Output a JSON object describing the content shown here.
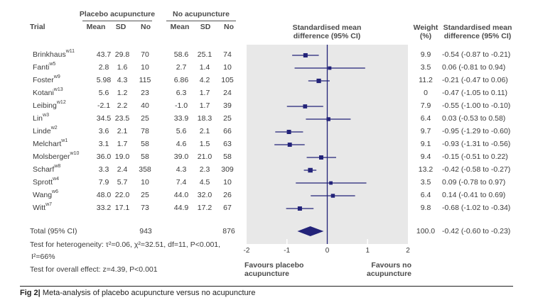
{
  "headers": {
    "trial": "Trial",
    "group1": "Placebo acupuncture",
    "group2": "No acupuncture",
    "mean": "Mean",
    "sd": "SD",
    "no": "No",
    "plot_title_line1": "Standardised mean",
    "plot_title_line2": "difference (95% CI)",
    "weight_line1": "Weight",
    "weight_line2": "(%)",
    "smd_line1": "Standardised mean",
    "smd_line2": "difference (95% CI)"
  },
  "rows": [
    {
      "trial": "Brinkhaus",
      "ref": "w11",
      "m1": "43.7",
      "sd1": "29.8",
      "n1": "70",
      "m2": "58.6",
      "sd2": "25.1",
      "n2": "74",
      "weight": "9.9",
      "smd_text": "-0.54 (-0.87 to -0.21)"
    },
    {
      "trial": "Fanti",
      "ref": "w5",
      "m1": "2.8",
      "sd1": "1.6",
      "n1": "10",
      "m2": "2.7",
      "sd2": "1.4",
      "n2": "10",
      "weight": "3.5",
      "smd_text": "0.06 (-0.81 to 0.94)"
    },
    {
      "trial": "Foster",
      "ref": "w9",
      "m1": "5.98",
      "sd1": "4.3",
      "n1": "115",
      "m2": "6.86",
      "sd2": "4.2",
      "n2": "105",
      "weight": "11.2",
      "smd_text": "-0.21 (-0.47 to 0.06)"
    },
    {
      "trial": "Kotani",
      "ref": "w13",
      "m1": "5.6",
      "sd1": "1.2",
      "n1": "23",
      "m2": "6.3",
      "sd2": "1.7",
      "n2": "24",
      "weight": "0",
      "smd_text": "-0.47 (-1.05 to 0.11)"
    },
    {
      "trial": "Leibing",
      "ref": "w12",
      "m1": "-2.1",
      "sd1": "2.2",
      "n1": "40",
      "m2": "-1.0",
      "sd2": "1.7",
      "n2": "39",
      "weight": "7.9",
      "smd_text": "-0.55 (-1.00 to -0.10)"
    },
    {
      "trial": "Lin",
      "ref": "w3",
      "m1": "34.5",
      "sd1": "23.5",
      "n1": "25",
      "m2": "33.9",
      "sd2": "18.3",
      "n2": "25",
      "weight": "6.4",
      "smd_text": "0.03 (-0.53 to 0.58)"
    },
    {
      "trial": "Linde",
      "ref": "w2",
      "m1": "3.6",
      "sd1": "2.1",
      "n1": "78",
      "m2": "5.6",
      "sd2": "2.1",
      "n2": "66",
      "weight": "9.7",
      "smd_text": "-0.95 (-1.29 to -0.60)"
    },
    {
      "trial": "Melchart",
      "ref": "w1",
      "m1": "3.1",
      "sd1": "1.7",
      "n1": "58",
      "m2": "4.6",
      "sd2": "1.5",
      "n2": "63",
      "weight": "9.1",
      "smd_text": "-0.93 (-1.31 to -0.56)"
    },
    {
      "trial": "Molsberger",
      "ref": "w10",
      "m1": "36.0",
      "sd1": "19.0",
      "n1": "58",
      "m2": "39.0",
      "sd2": "21.0",
      "n2": "58",
      "weight": "9.4",
      "smd_text": "-0.15 (-0.51 to 0.22)"
    },
    {
      "trial": "Scharf",
      "ref": "w8",
      "m1": "3.3",
      "sd1": "2.4",
      "n1": "358",
      "m2": "4.3",
      "sd2": "2.3",
      "n2": "309",
      "weight": "13.2",
      "smd_text": "-0.42 (-0.58 to -0.27)"
    },
    {
      "trial": "Sprott",
      "ref": "w4",
      "m1": "7.9",
      "sd1": "5.7",
      "n1": "10",
      "m2": "7.4",
      "sd2": "4.5",
      "n2": "10",
      "weight": "3.5",
      "smd_text": "0.09 (-0.78 to 0.97)"
    },
    {
      "trial": "Wang",
      "ref": "w6",
      "m1": "48.0",
      "sd1": "22.0",
      "n1": "25",
      "m2": "44.0",
      "sd2": "32.0",
      "n2": "26",
      "weight": "6.4",
      "smd_text": "0.14 (-0.41 to 0.69)"
    },
    {
      "trial": "Witt",
      "ref": "w7",
      "m1": "33.2",
      "sd1": "17.1",
      "n1": "73",
      "m2": "44.9",
      "sd2": "17.2",
      "n2": "67",
      "weight": "9.8",
      "smd_text": "-0.68 (-1.02 to -0.34)"
    }
  ],
  "total": {
    "label": "Total (95% CI)",
    "n1": "943",
    "n2": "876",
    "weight": "100.0",
    "smd_text": "-0.42 (-0.60 to -0.23)"
  },
  "heterogeneity_line1": "Test for heterogeneity: τ²=0.06, χ²=32.51, df=11, P<0.001,",
  "heterogeneity_line2": "I²=66%",
  "overall_effect": "Test for overall effect: z=4.39, P<0.001",
  "favours_left_line1": "Favours placebo",
  "favours_left_line2": "acupuncture",
  "favours_right_line1": "Favours no",
  "favours_right_line2": "acupuncture",
  "caption_label": "Fig 2|",
  "caption_text": "Meta-analysis of placebo acupuncture versus no acupuncture",
  "colors": {
    "marker": "#232379",
    "plot_bg": "#e8e8e8",
    "text": "#3a3a3a"
  },
  "chart_data": {
    "type": "forest",
    "title": "Standardised mean difference (95% CI)",
    "xlabel": "",
    "xlim": [
      -2,
      2
    ],
    "xticks": [
      -2,
      -1,
      0,
      1,
      2
    ],
    "xtick_labels": [
      "-2",
      "-1",
      "0",
      "1",
      "2"
    ],
    "grid": false,
    "reference_line": 0,
    "studies": [
      {
        "name": "Brinkhaus",
        "est": -0.54,
        "lo": -0.87,
        "hi": -0.21,
        "weight": 9.9
      },
      {
        "name": "Fanti",
        "est": 0.06,
        "lo": -0.81,
        "hi": 0.94,
        "weight": 3.5
      },
      {
        "name": "Foster",
        "est": -0.21,
        "lo": -0.47,
        "hi": 0.06,
        "weight": 11.2
      },
      {
        "name": "Kotani",
        "est": -0.47,
        "lo": -1.05,
        "hi": 0.11,
        "weight": 0,
        "plotted": false
      },
      {
        "name": "Leibing",
        "est": -0.55,
        "lo": -1.0,
        "hi": -0.1,
        "weight": 7.9
      },
      {
        "name": "Lin",
        "est": 0.03,
        "lo": -0.53,
        "hi": 0.58,
        "weight": 6.4
      },
      {
        "name": "Linde",
        "est": -0.95,
        "lo": -1.29,
        "hi": -0.6,
        "weight": 9.7
      },
      {
        "name": "Melchart",
        "est": -0.93,
        "lo": -1.31,
        "hi": -0.56,
        "weight": 9.1
      },
      {
        "name": "Molsberger",
        "est": -0.15,
        "lo": -0.51,
        "hi": 0.22,
        "weight": 9.4
      },
      {
        "name": "Scharf",
        "est": -0.42,
        "lo": -0.58,
        "hi": -0.27,
        "weight": 13.2
      },
      {
        "name": "Sprott",
        "est": 0.09,
        "lo": -0.78,
        "hi": 0.97,
        "weight": 3.5
      },
      {
        "name": "Wang",
        "est": 0.14,
        "lo": -0.41,
        "hi": 0.69,
        "weight": 6.4
      },
      {
        "name": "Witt",
        "est": -0.68,
        "lo": -1.02,
        "hi": -0.34,
        "weight": 9.8
      }
    ],
    "pooled": {
      "name": "Total (95% CI)",
      "est": -0.42,
      "lo": -0.6,
      "hi": -0.23,
      "weight": 100.0
    },
    "annotations": [
      "Favours placebo acupuncture",
      "Favours no acupuncture"
    ]
  }
}
